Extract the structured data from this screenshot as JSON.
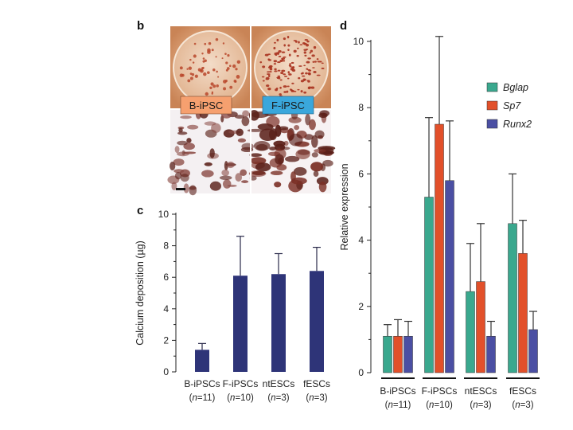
{
  "figure": {
    "panel_b_letter": "b",
    "panel_c_letter": "c",
    "panel_d_letter": "d",
    "micro_label_left": "B-iPSC",
    "micro_label_right": "F-iPSC"
  },
  "colors": {
    "plate": "#d9a27a",
    "plate_rim": "#f1d2b4",
    "colony": "#b9472a",
    "stain_dark": "#5a1f18",
    "label_left_bg": "#f6a06f",
    "label_right_bg": "#3aa7dc",
    "bar_c": "#2e3478",
    "bglap": "#3aa88e",
    "sp7": "#e2502a",
    "runx2": "#4b4fa3",
    "axis": "#222222"
  },
  "chart_data": [
    {
      "type": "bar",
      "panel": "c",
      "ylabel": "Calcium deposition (µg)",
      "ylim": [
        0,
        10
      ],
      "yticks": [
        "0",
        "2",
        "4",
        "6",
        "8",
        "10"
      ],
      "categories": [
        "B-iPSCs",
        "F-iPSCs",
        "ntESCs",
        "fESCs"
      ],
      "category_n": [
        "(n=11)",
        "(n=10)",
        "(n=3)",
        "(n=3)"
      ],
      "values": [
        1.4,
        6.1,
        6.2,
        6.4
      ],
      "errors": [
        0.4,
        2.5,
        1.3,
        1.5
      ]
    },
    {
      "type": "bar",
      "panel": "d",
      "ylabel": "Relative expression",
      "ylim": [
        0,
        10
      ],
      "yticks": [
        "0",
        "2",
        "4",
        "6",
        "8",
        "10"
      ],
      "categories": [
        "B-iPSCs",
        "F-iPSCs",
        "ntESCs",
        "fESCs"
      ],
      "category_n": [
        "(n=11)",
        "(n=10)",
        "(n=3)",
        "(n=3)"
      ],
      "legend_position": "top-right",
      "series": [
        {
          "name": "Bglap",
          "values": [
            1.1,
            5.3,
            2.45,
            4.5
          ],
          "errors": [
            0.35,
            2.4,
            1.45,
            1.5
          ]
        },
        {
          "name": "Sp7",
          "values": [
            1.1,
            7.5,
            2.75,
            3.6
          ],
          "errors": [
            0.5,
            2.65,
            1.75,
            1.0
          ]
        },
        {
          "name": "Runx2",
          "values": [
            1.1,
            5.8,
            1.1,
            1.3
          ],
          "errors": [
            0.45,
            1.8,
            0.45,
            0.55
          ]
        }
      ]
    }
  ]
}
